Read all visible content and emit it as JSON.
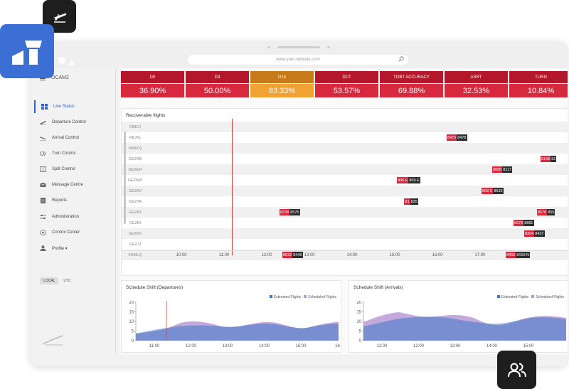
{
  "browser": {
    "url": "www.your-website.com"
  },
  "sidebar": {
    "brand": "OCAM2",
    "items": [
      {
        "label": "Live Status",
        "icon": "grid-icon",
        "active": true
      },
      {
        "label": "Departure Control",
        "icon": "departure-icon",
        "active": false
      },
      {
        "label": "Arrival Control",
        "icon": "arrival-icon",
        "active": false
      },
      {
        "label": "Turn Control",
        "icon": "turn-icon",
        "active": false
      },
      {
        "label": "Split Control",
        "icon": "split-icon",
        "active": false
      },
      {
        "label": "Message Centre",
        "icon": "mail-icon",
        "active": false
      },
      {
        "label": "Reports",
        "icon": "report-icon",
        "active": false
      },
      {
        "label": "Administration",
        "icon": "sliders-icon",
        "active": false
      },
      {
        "label": "Control Center",
        "icon": "target-icon",
        "active": false
      },
      {
        "label": "Profile ▾",
        "icon": "user-icon",
        "active": false
      }
    ],
    "timezone": {
      "local": "LOCAL",
      "utc": "UTC"
    }
  },
  "kpis": [
    {
      "label": "D0",
      "value": "36.90%",
      "status": "alert"
    },
    {
      "label": "D3",
      "value": "50.00%",
      "status": "alert"
    },
    {
      "label": "D15",
      "value": "83.33%",
      "status": "warn"
    },
    {
      "label": "DCT",
      "value": "53.57%",
      "status": "alert"
    },
    {
      "label": "TOBT ACCURACY",
      "value": "69.88%",
      "status": "alert"
    },
    {
      "label": "ASRT",
      "value": "32.53%",
      "status": "alert"
    },
    {
      "label": "TURN",
      "value": "10.84%",
      "status": "alert"
    }
  ],
  "gantt": {
    "title": "Recoverable flights",
    "rows": [
      "OBICJ",
      "HBJXL",
      "HBAYQ",
      "GEZAB",
      "GEZEH",
      "GEZBW",
      "GEZAV",
      "GEZTA",
      "GEZAY",
      "GEZBI",
      "GEZBV",
      "GEZJJ",
      "9HMLQ"
    ],
    "ticks": [
      "10:00",
      "11:00",
      "12:00",
      "13:00",
      "14:00",
      "15:00",
      "16:00",
      "17:00",
      "18:00"
    ],
    "flights": [
      {
        "row": 1,
        "a": "8475",
        "b": "8478"
      },
      {
        "row": 3,
        "a": "5168",
        "b": "81"
      },
      {
        "row": 4,
        "a": "8088",
        "b": "8117"
      },
      {
        "row": 5,
        "a": "806 E",
        "b": "809 E"
      },
      {
        "row": 6,
        "a": "808 E",
        "b": "8633"
      },
      {
        "row": 7,
        "a": "B1",
        "b": "825"
      },
      {
        "row": 8,
        "a": "8238",
        "b": "8575"
      },
      {
        "row": 8,
        "a": "8576",
        "b": "855"
      },
      {
        "row": 9,
        "a": "8278",
        "b": "8881"
      },
      {
        "row": 10,
        "a": "8304",
        "b": "8437"
      },
      {
        "row": 12,
        "a": "8532",
        "b": "8449"
      },
      {
        "row": 12,
        "a": "8450",
        "b": "8359 N"
      }
    ]
  },
  "departures": {
    "title": "Schedule Shift (Departures)",
    "legend": {
      "estimated": "Estimated Flights",
      "scheduled": "Scheduled Flights"
    },
    "yticks": [
      "20",
      "15",
      "10",
      "5",
      "0"
    ],
    "xticks": [
      "11:00",
      "12:00",
      "13:00",
      "14:00",
      "15:00",
      "16"
    ]
  },
  "arrivals": {
    "title": "Schedule Shift (Arrivals)",
    "legend": {
      "estimated": "Estimated Flights",
      "scheduled": "Scheduled Flights"
    },
    "yticks": [
      "20",
      "15",
      "10",
      "5",
      "0"
    ],
    "xticks": [
      "11:00",
      "12:00",
      "13:00",
      "14:00",
      "15:00"
    ]
  },
  "colors": {
    "accent": "#3b6fd4",
    "alert": "#d7283d",
    "warn": "#f0a233",
    "estimated": "#3b78c7",
    "scheduled": "#9b6cc4"
  }
}
